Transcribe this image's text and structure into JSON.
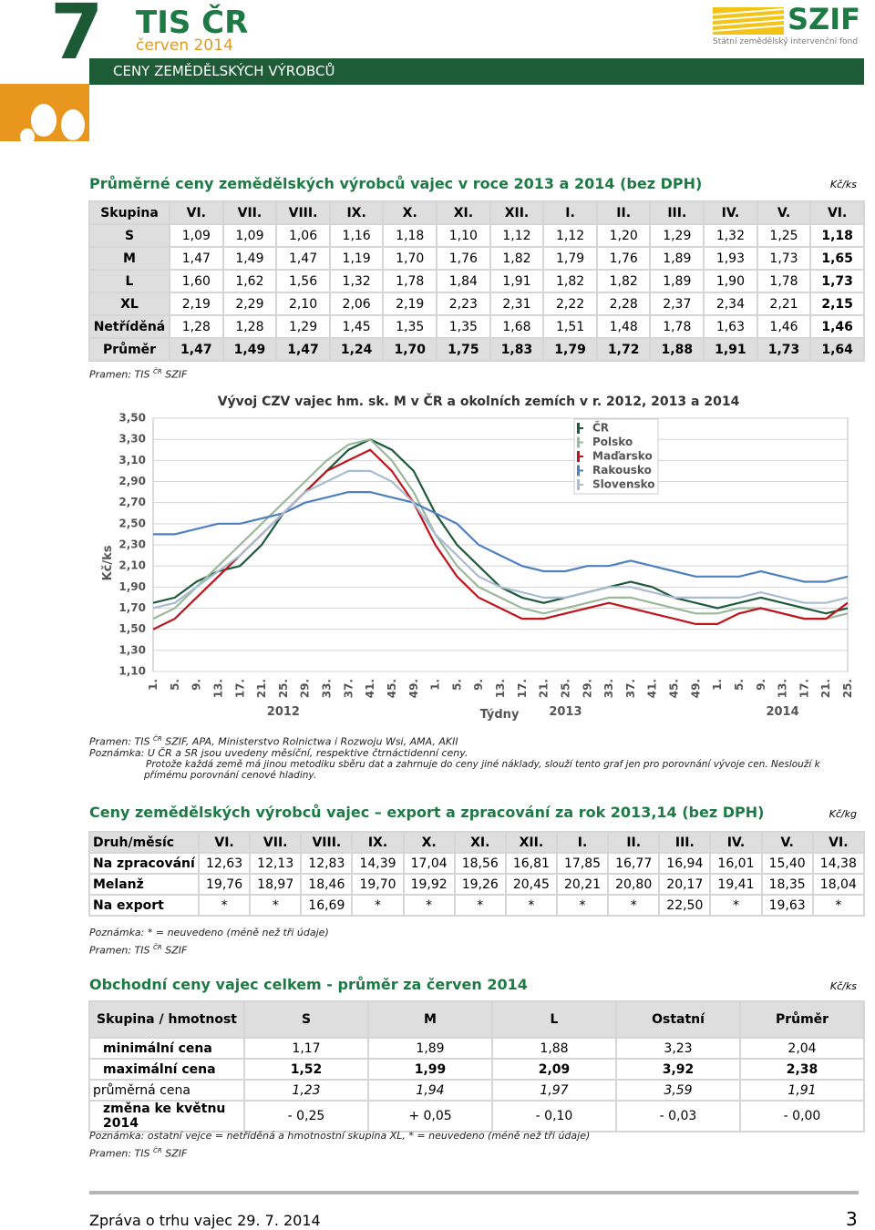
{
  "header": {
    "number": "7",
    "brand": "TIS ČR",
    "issue": "červen 2014",
    "banner": "CENY ZEMĚDĚLSKÝCH VÝROBCŮ",
    "logo": "SZIF",
    "logo_sub": "Státní zemědělský intervenční fond"
  },
  "section1": {
    "title": "Průměrné ceny zemědělských výrobců vajec v roce 2013 a 2014 (bez DPH)",
    "unit": "Kč/ks",
    "table": {
      "headers": [
        "Skupina",
        "VI.",
        "VII.",
        "VIII.",
        "IX.",
        "X.",
        "XI.",
        "XII.",
        "I.",
        "II.",
        "III.",
        "IV.",
        "V.",
        "VI."
      ],
      "rows": [
        {
          "label": "S",
          "values": [
            "1,09",
            "1,09",
            "1,06",
            "1,16",
            "1,18",
            "1,10",
            "1,12",
            "1,12",
            "1,20",
            "1,29",
            "1,32",
            "1,25",
            "1,18"
          ]
        },
        {
          "label": "M",
          "values": [
            "1,47",
            "1,49",
            "1,47",
            "1,19",
            "1,70",
            "1,76",
            "1,82",
            "1,79",
            "1,76",
            "1,89",
            "1,93",
            "1,73",
            "1,65"
          ]
        },
        {
          "label": "L",
          "values": [
            "1,60",
            "1,62",
            "1,56",
            "1,32",
            "1,78",
            "1,84",
            "1,91",
            "1,82",
            "1,82",
            "1,89",
            "1,90",
            "1,78",
            "1,73"
          ]
        },
        {
          "label": "XL",
          "values": [
            "2,19",
            "2,29",
            "2,10",
            "2,06",
            "2,19",
            "2,23",
            "2,31",
            "2,22",
            "2,28",
            "2,37",
            "2,34",
            "2,21",
            "2,15"
          ]
        },
        {
          "label": "Netříděná",
          "values": [
            "1,28",
            "1,28",
            "1,29",
            "1,45",
            "1,35",
            "1,35",
            "1,68",
            "1,51",
            "1,48",
            "1,78",
            "1,63",
            "1,46",
            "1,46"
          ]
        },
        {
          "label": "Průměr",
          "values": [
            "1,47",
            "1,49",
            "1,47",
            "1,24",
            "1,70",
            "1,75",
            "1,83",
            "1,79",
            "1,72",
            "1,88",
            "1,91",
            "1,73",
            "1,64"
          ]
        }
      ]
    },
    "source": [
      "Pramen: TIS",
      "ČR",
      "SZIF"
    ]
  },
  "chart_data": {
    "type": "line",
    "title": "Vývoj CZV vajec hm. sk. M v ČR a okolních zemích v r. 2012, 2013 a 2014",
    "y_label": "Kč/ks",
    "x_label": "Týdny",
    "year_labels": [
      "2012",
      "2013",
      "2014"
    ],
    "categories": [
      "1.",
      "5.",
      "9.",
      "13.",
      "17.",
      "21.",
      "25.",
      "29.",
      "33.",
      "37.",
      "41.",
      "45.",
      "49.",
      "1.",
      "5.",
      "9.",
      "13.",
      "17.",
      "21.",
      "25.",
      "29.",
      "33.",
      "37.",
      "41.",
      "45.",
      "49.",
      "1.",
      "5.",
      "9.",
      "13.",
      "17.",
      "21.",
      "25."
    ],
    "ylim": [
      1.1,
      3.5
    ],
    "yticks": [
      {
        "value": 1.1,
        "label": "1,10"
      },
      {
        "value": 1.3,
        "label": "1,30"
      },
      {
        "value": 1.5,
        "label": "1,50"
      },
      {
        "value": 1.7,
        "label": "1,70"
      },
      {
        "value": 1.9,
        "label": "1,90"
      },
      {
        "value": 2.1,
        "label": "2,10"
      },
      {
        "value": 2.3,
        "label": "2,30"
      },
      {
        "value": 2.5,
        "label": "2,50"
      },
      {
        "value": 2.7,
        "label": "2,70"
      },
      {
        "value": 2.9,
        "label": "2,90"
      },
      {
        "value": 3.1,
        "label": "3,10"
      },
      {
        "value": 3.3,
        "label": "3,30"
      },
      {
        "value": 3.5,
        "label": "3,50"
      }
    ],
    "grid": true,
    "series": [
      {
        "name": "ČR",
        "color": "#1f5a3c",
        "values": [
          1.75,
          1.8,
          1.95,
          2.05,
          2.1,
          2.3,
          2.6,
          2.8,
          3.0,
          3.2,
          3.3,
          3.2,
          3.0,
          2.6,
          2.3,
          2.1,
          1.9,
          1.8,
          1.75,
          1.8,
          1.85,
          1.9,
          1.95,
          1.9,
          1.8,
          1.75,
          1.7,
          1.75,
          1.8,
          1.75,
          1.7,
          1.65,
          1.7
        ]
      },
      {
        "name": "Polsko",
        "color": "#9bb89a",
        "values": [
          1.6,
          1.7,
          1.9,
          2.1,
          2.3,
          2.5,
          2.7,
          2.9,
          3.1,
          3.25,
          3.3,
          3.1,
          2.8,
          2.4,
          2.1,
          1.9,
          1.8,
          1.7,
          1.65,
          1.7,
          1.75,
          1.8,
          1.8,
          1.75,
          1.7,
          1.65,
          1.65,
          1.7,
          1.7,
          1.65,
          1.6,
          1.6,
          1.65
        ]
      },
      {
        "name": "Maďarsko",
        "color": "#c0141c",
        "values": [
          1.5,
          1.6,
          1.8,
          2.0,
          2.2,
          2.4,
          2.6,
          2.8,
          3.0,
          3.1,
          3.2,
          3.0,
          2.7,
          2.3,
          2.0,
          1.8,
          1.7,
          1.6,
          1.6,
          1.65,
          1.7,
          1.75,
          1.7,
          1.65,
          1.6,
          1.55,
          1.55,
          1.65,
          1.7,
          1.65,
          1.6,
          1.6,
          1.75
        ]
      },
      {
        "name": "Rakousko",
        "color": "#4f7fbd",
        "values": [
          2.4,
          2.4,
          2.45,
          2.5,
          2.5,
          2.55,
          2.6,
          2.7,
          2.75,
          2.8,
          2.8,
          2.75,
          2.7,
          2.6,
          2.5,
          2.3,
          2.2,
          2.1,
          2.05,
          2.05,
          2.1,
          2.1,
          2.15,
          2.1,
          2.05,
          2.0,
          2.0,
          2.0,
          2.05,
          2.0,
          1.95,
          1.95,
          2.0
        ]
      },
      {
        "name": "Slovensko",
        "color": "#a9bcd2",
        "values": [
          1.7,
          1.75,
          1.9,
          2.05,
          2.2,
          2.4,
          2.6,
          2.8,
          2.9,
          3.0,
          3.0,
          2.9,
          2.7,
          2.4,
          2.2,
          2.0,
          1.9,
          1.85,
          1.8,
          1.8,
          1.85,
          1.9,
          1.9,
          1.85,
          1.8,
          1.8,
          1.8,
          1.8,
          1.85,
          1.8,
          1.75,
          1.75,
          1.8
        ]
      }
    ]
  },
  "chart_notes": {
    "source": [
      "Pramen: TIS",
      "ČR",
      "SZIF, APA, Ministerstvo Rolnictwa i Rozwoju Wsi, AMA, AKII"
    ],
    "note": "Poznámka: U ČR a SR jsou uvedeny měsíční, respektive čtrnáctidenní ceny.",
    "note2": "Protože každá země má jinou metodiku sběru dat a zahrnuje do ceny jiné náklady, slouží tento graf jen pro porovnání vývoje cen. Neslouží k přímému porovnání cenové hladiny."
  },
  "section2": {
    "title": "Ceny zemědělských výrobců vajec – export a zpracování za rok 2013,14 (bez DPH)",
    "unit": "Kč/kg",
    "table": {
      "headers": [
        "Druh/měsíc",
        "VI.",
        "VII.",
        "VIII.",
        "IX.",
        "X.",
        "XI.",
        "XII.",
        "I.",
        "II.",
        "III.",
        "IV.",
        "V.",
        "VI."
      ],
      "rows": [
        {
          "label": "Na zpracování",
          "values": [
            "12,63",
            "12,13",
            "12,83",
            "14,39",
            "17,04",
            "18,56",
            "16,81",
            "17,85",
            "16,77",
            "16,94",
            "16,01",
            "15,40",
            "14,38"
          ]
        },
        {
          "label": "Melanž",
          "values": [
            "19,76",
            "18,97",
            "18,46",
            "19,70",
            "19,92",
            "19,26",
            "20,45",
            "20,21",
            "20,80",
            "20,17",
            "19,41",
            "18,35",
            "18,04"
          ]
        },
        {
          "label": "Na export",
          "values": [
            "*",
            "*",
            "16,69",
            "*",
            "*",
            "*",
            "*",
            "*",
            "*",
            "22,50",
            "*",
            "19,63",
            "*"
          ]
        }
      ]
    },
    "note": "Poznámka: * = neuvedeno (méně než tři údaje)",
    "source": [
      "Pramen: TIS",
      "ČR",
      "SZIF"
    ]
  },
  "section3": {
    "title": "Obchodní ceny vajec celkem - průměr za červen 2014",
    "unit": "Kč/ks",
    "table": {
      "headers": [
        "Skupina / hmotnost",
        "S",
        "M",
        "L",
        "Ostatní",
        "Průměr"
      ],
      "rows": [
        {
          "label": "minimální cena",
          "values": [
            "1,17",
            "1,89",
            "1,88",
            "3,23",
            "2,04"
          ]
        },
        {
          "label": "maximální cena",
          "values": [
            "1,52",
            "1,99",
            "2,09",
            "3,92",
            "2,38"
          ]
        },
        {
          "label": "průměrná cena",
          "values": [
            "1,23",
            "1,94",
            "1,97",
            "3,59",
            "1,91"
          ]
        },
        {
          "label": "změna ke květnu 2014",
          "values": [
            "- 0,25",
            "+ 0,05",
            "- 0,10",
            "- 0,03",
            "- 0,00"
          ]
        }
      ]
    },
    "note": "Poznámka: ostatní vejce = netříděná a hmotnostní skupina XL, * =  neuvedeno (méně než tři údaje)",
    "source": [
      "Pramen: TIS",
      "ČR",
      "SZIF"
    ]
  },
  "footer": {
    "text": "Zpráva o trhu vajec 29. 7. 2014",
    "page": "3"
  }
}
